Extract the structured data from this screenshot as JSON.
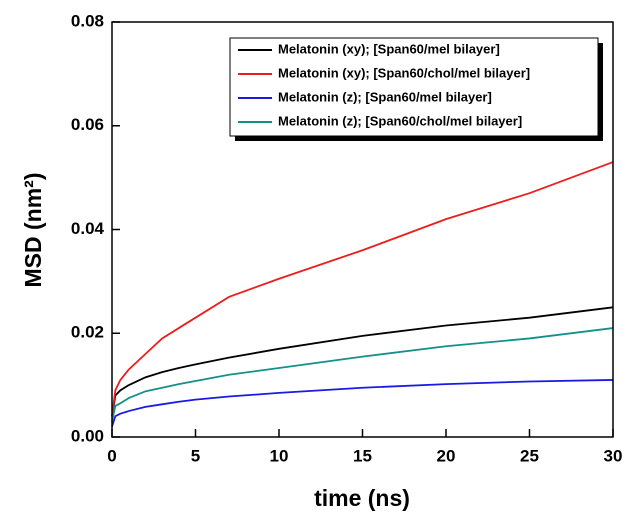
{
  "chart_data": {
    "type": "line",
    "x_label": "time (ns)",
    "y_label": "MSD (nm²)",
    "x": [
      0,
      0.2,
      0.5,
      1,
      2,
      3,
      4,
      5,
      7,
      10,
      15,
      20,
      25,
      30
    ],
    "series": [
      {
        "name": "Melatonin (xy); [Span60/mel bilayer]",
        "color": "#000000",
        "values": [
          0.004,
          0.008,
          0.009,
          0.01,
          0.0115,
          0.0125,
          0.0133,
          0.014,
          0.0153,
          0.017,
          0.0195,
          0.0215,
          0.023,
          0.025
        ]
      },
      {
        "name": "Melatonin (xy); [Span60/chol/mel bilayer]",
        "color": "#ee1c1c",
        "values": [
          0.004,
          0.009,
          0.011,
          0.013,
          0.016,
          0.019,
          0.021,
          0.023,
          0.027,
          0.0305,
          0.036,
          0.042,
          0.047,
          0.053
        ]
      },
      {
        "name": "Melatonin (z); [Span60/mel bilayer]",
        "color": "#1a1ae6",
        "values": [
          0.002,
          0.004,
          0.0045,
          0.005,
          0.0058,
          0.0063,
          0.0068,
          0.0072,
          0.0078,
          0.0085,
          0.0095,
          0.0102,
          0.0107,
          0.011
        ]
      },
      {
        "name": "Melatonin (z); [Span60/chol/mel bilayer]",
        "color": "#14908a",
        "values": [
          0.003,
          0.006,
          0.0065,
          0.0075,
          0.0088,
          0.0095,
          0.0102,
          0.0108,
          0.012,
          0.0133,
          0.0155,
          0.0175,
          0.019,
          0.021
        ]
      }
    ],
    "xlim": [
      0,
      30
    ],
    "xticks": [
      0,
      5,
      10,
      15,
      20,
      25,
      30
    ],
    "ylim": [
      0,
      0.08
    ],
    "yticks": [
      {
        "value": 0,
        "label": "0.00"
      },
      {
        "value": 0.02,
        "label": "0.02"
      },
      {
        "value": 0.04,
        "label": "0.04"
      },
      {
        "value": 0.06,
        "label": "0.06"
      },
      {
        "value": 0.08,
        "label": "0.08"
      }
    ],
    "legend": "upper right"
  }
}
